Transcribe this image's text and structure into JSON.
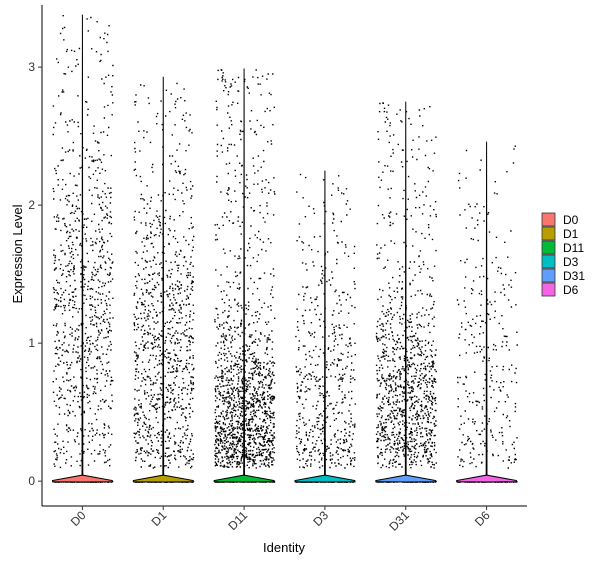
{
  "chart_data": {
    "type": "scatter",
    "subtype": "violin-jitter",
    "title": "",
    "xlabel": "Identity",
    "ylabel": "Expression Level",
    "ylim": [
      -0.18,
      3.45
    ],
    "yticks": [
      0,
      1,
      2,
      3
    ],
    "grid": false,
    "legend_position": "right",
    "categories": [
      "D0",
      "D1",
      "D11",
      "D3",
      "D31",
      "D6"
    ],
    "series": [
      {
        "name": "D0",
        "color": "#F8766D",
        "max": 3.38,
        "n_expressing": 900,
        "mode": 1.2,
        "spread": 0.7
      },
      {
        "name": "D1",
        "color": "#B79F00",
        "max": 2.93,
        "n_expressing": 1000,
        "mode": 0.9,
        "spread": 0.6
      },
      {
        "name": "D11",
        "color": "#00BA38",
        "max": 2.99,
        "n_expressing": 1500,
        "mode": 0.45,
        "spread": 0.35
      },
      {
        "name": "D3",
        "color": "#00BFC4",
        "max": 2.25,
        "n_expressing": 550,
        "mode": 0.6,
        "spread": 0.6
      },
      {
        "name": "D31",
        "color": "#619CFF",
        "max": 2.75,
        "n_expressing": 1100,
        "mode": 0.55,
        "spread": 0.4
      },
      {
        "name": "D6",
        "color": "#F564E3",
        "max": 2.46,
        "n_expressing": 300,
        "mode": 0.8,
        "spread": 0.6
      }
    ]
  }
}
